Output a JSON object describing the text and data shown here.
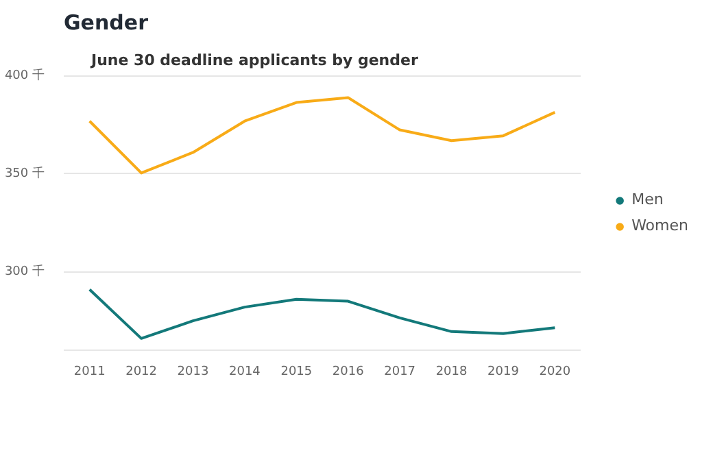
{
  "chart_data": {
    "type": "line",
    "title": "Gender",
    "subtitle": "June 30 deadline applicants  by gender",
    "categories": [
      "2011",
      "2012",
      "2013",
      "2014",
      "2015",
      "2016",
      "2017",
      "2018",
      "2019",
      "2020"
    ],
    "series": [
      {
        "name": "Men",
        "color": "#13797a",
        "values": [
          291,
          266,
          275,
          282,
          286,
          285,
          276.5,
          269.5,
          268.5,
          271.5
        ]
      },
      {
        "name": "Women",
        "color": "#f8ab17",
        "values": [
          377,
          350.5,
          361,
          377,
          386.5,
          389,
          372.5,
          367,
          369.5,
          381.5
        ]
      }
    ],
    "ylim": [
      260,
      400
    ],
    "yticks": [
      {
        "value": 300,
        "label": "300 千"
      },
      {
        "value": 350,
        "label": "350 千"
      },
      {
        "value": 400,
        "label": "400 千"
      }
    ],
    "grid": "y",
    "legend": "right",
    "marker": "none",
    "line_style": "solid"
  }
}
